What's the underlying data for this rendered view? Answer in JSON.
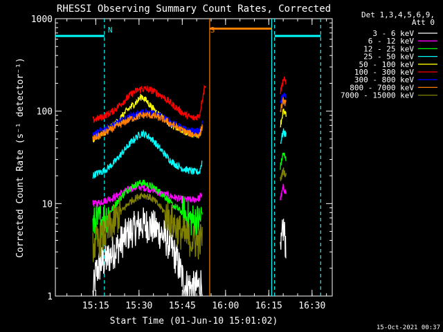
{
  "chart_data": {
    "type": "line",
    "title": "RHESSI Observing Summary Count Rates, Corrected",
    "xlabel": "Start Time (01-Jun-10 15:01:02)",
    "ylabel": "Corrected Count Rate (s⁻¹ detector⁻¹)",
    "yscale": "log",
    "ylim": [
      1,
      1000
    ],
    "xlim_minutes": [
      0,
      96
    ],
    "x_ticks": [
      {
        "label": "15:15",
        "t": 14
      },
      {
        "label": "15:30",
        "t": 29
      },
      {
        "label": "15:45",
        "t": 44
      },
      {
        "label": "16:00",
        "t": 59
      },
      {
        "label": "16:15",
        "t": 74
      },
      {
        "label": "16:30",
        "t": 89
      }
    ],
    "y_ticks": [
      {
        "label": "1",
        "v": 1
      },
      {
        "label": "10",
        "v": 10
      },
      {
        "label": "100",
        "v": 100
      },
      {
        "label": "1000",
        "v": 1000
      }
    ],
    "legend_header": [
      "Det 1,3,4,5,6,9,",
      "Att 0"
    ],
    "legend_placement": "right",
    "series": [
      {
        "name": "3 - 6 keV",
        "color": "#ffffff",
        "seg1": [
          [
            13,
            1
          ],
          [
            14,
            1.8
          ],
          [
            16,
            2.3
          ],
          [
            18,
            2.5
          ],
          [
            20,
            3.0
          ],
          [
            22,
            3.5
          ],
          [
            24,
            4.3
          ],
          [
            26,
            5.0
          ],
          [
            28,
            5.5
          ],
          [
            30,
            6.0
          ],
          [
            32,
            5.8
          ],
          [
            34,
            5.5
          ],
          [
            36,
            5.0
          ],
          [
            38,
            4.3
          ],
          [
            40,
            3.5
          ],
          [
            42,
            2.5
          ],
          [
            44,
            1.6
          ],
          [
            45,
            1.3
          ],
          [
            46,
            1.3
          ],
          [
            48,
            1.2
          ],
          [
            50,
            1.3
          ],
          [
            51,
            1.5
          ]
        ],
        "seg2": [
          [
            78,
            2.5
          ],
          [
            79,
            5.5
          ],
          [
            80,
            3.5
          ]
        ]
      },
      {
        "name": "6 - 12 keV",
        "color": "#ff00ff",
        "seg1": [
          [
            13,
            10
          ],
          [
            14,
            10
          ],
          [
            16,
            10.5
          ],
          [
            18,
            11
          ],
          [
            20,
            11.5
          ],
          [
            22,
            12.5
          ],
          [
            24,
            13.5
          ],
          [
            26,
            14.5
          ],
          [
            28,
            15
          ],
          [
            30,
            15
          ],
          [
            32,
            14.5
          ],
          [
            34,
            14
          ],
          [
            36,
            13
          ],
          [
            38,
            12.5
          ],
          [
            40,
            12
          ],
          [
            42,
            11.5
          ],
          [
            44,
            11
          ],
          [
            46,
            11
          ],
          [
            48,
            11
          ],
          [
            50,
            11.5
          ],
          [
            51,
            13
          ]
        ],
        "seg2": [
          [
            78,
            11
          ],
          [
            79,
            15
          ],
          [
            80,
            13
          ]
        ]
      },
      {
        "name": "12 - 25 keV",
        "color": "#00ff00",
        "seg1": [
          [
            13,
            6
          ],
          [
            14,
            6.2
          ],
          [
            16,
            6.8
          ],
          [
            18,
            7.5
          ],
          [
            20,
            9
          ],
          [
            22,
            11
          ],
          [
            24,
            13
          ],
          [
            26,
            15
          ],
          [
            28,
            16
          ],
          [
            30,
            17
          ],
          [
            32,
            16
          ],
          [
            34,
            15
          ],
          [
            36,
            13.5
          ],
          [
            38,
            12
          ],
          [
            40,
            10
          ],
          [
            42,
            9
          ],
          [
            44,
            8
          ],
          [
            46,
            7
          ],
          [
            48,
            6.5
          ],
          [
            50,
            6.5
          ],
          [
            51,
            8
          ]
        ],
        "seg2": [
          [
            78,
            25
          ],
          [
            79,
            35
          ],
          [
            80,
            30
          ]
        ]
      },
      {
        "name": "25 - 50 keV",
        "color": "#00ffff",
        "seg1": [
          [
            13,
            20
          ],
          [
            14,
            21
          ],
          [
            16,
            22
          ],
          [
            18,
            24
          ],
          [
            20,
            27
          ],
          [
            22,
            32
          ],
          [
            24,
            38
          ],
          [
            26,
            45
          ],
          [
            28,
            52
          ],
          [
            30,
            58
          ],
          [
            32,
            54
          ],
          [
            34,
            48
          ],
          [
            36,
            40
          ],
          [
            38,
            34
          ],
          [
            40,
            29
          ],
          [
            42,
            26
          ],
          [
            44,
            24
          ],
          [
            46,
            23
          ],
          [
            48,
            22
          ],
          [
            50,
            22
          ],
          [
            51,
            30
          ]
        ],
        "seg2": [
          [
            78,
            45
          ],
          [
            79,
            60
          ],
          [
            80,
            55
          ]
        ]
      },
      {
        "name": "50 - 100 keV",
        "color": "#ffff00",
        "seg1": [
          [
            13,
            50
          ],
          [
            14,
            52
          ],
          [
            16,
            56
          ],
          [
            18,
            62
          ],
          [
            20,
            70
          ],
          [
            22,
            80
          ],
          [
            24,
            95
          ],
          [
            26,
            110
          ],
          [
            28,
            125
          ],
          [
            30,
            145
          ],
          [
            32,
            125
          ],
          [
            34,
            105
          ],
          [
            36,
            92
          ],
          [
            38,
            82
          ],
          [
            40,
            72
          ],
          [
            42,
            66
          ],
          [
            44,
            62
          ],
          [
            46,
            58
          ],
          [
            48,
            56
          ],
          [
            50,
            56
          ],
          [
            51,
            70
          ]
        ],
        "seg2": [
          [
            78,
            70
          ],
          [
            79,
            100
          ],
          [
            80,
            90
          ]
        ]
      },
      {
        "name": "100 - 300 keV",
        "color": "#ff0000",
        "seg1": [
          [
            13,
            80
          ],
          [
            14,
            82
          ],
          [
            16,
            86
          ],
          [
            18,
            92
          ],
          [
            20,
            100
          ],
          [
            22,
            115
          ],
          [
            24,
            130
          ],
          [
            26,
            150
          ],
          [
            28,
            165
          ],
          [
            30,
            175
          ],
          [
            32,
            172
          ],
          [
            34,
            165
          ],
          [
            36,
            152
          ],
          [
            38,
            138
          ],
          [
            40,
            122
          ],
          [
            42,
            108
          ],
          [
            44,
            96
          ],
          [
            46,
            88
          ],
          [
            48,
            84
          ],
          [
            50,
            90
          ],
          [
            51,
            140
          ],
          [
            52,
            200
          ]
        ],
        "seg2": [
          [
            78,
            160
          ],
          [
            79,
            220
          ],
          [
            80,
            210
          ]
        ]
      },
      {
        "name": "300 - 800 keV",
        "color": "#0000ff",
        "seg1": [
          [
            13,
            55
          ],
          [
            14,
            57
          ],
          [
            16,
            62
          ],
          [
            18,
            66
          ],
          [
            20,
            70
          ],
          [
            22,
            76
          ],
          [
            24,
            82
          ],
          [
            26,
            88
          ],
          [
            28,
            92
          ],
          [
            30,
            95
          ],
          [
            32,
            96
          ],
          [
            34,
            94
          ],
          [
            36,
            90
          ],
          [
            38,
            84
          ],
          [
            40,
            76
          ],
          [
            42,
            70
          ],
          [
            44,
            65
          ],
          [
            46,
            62
          ],
          [
            48,
            60
          ],
          [
            50,
            60
          ],
          [
            51,
            75
          ]
        ],
        "seg2": [
          [
            78,
            120
          ],
          [
            79,
            155
          ],
          [
            80,
            140
          ]
        ]
      },
      {
        "name": "800 - 7000 keV",
        "color": "#ff8000",
        "seg1": [
          [
            13,
            50
          ],
          [
            14,
            52
          ],
          [
            16,
            56
          ],
          [
            18,
            60
          ],
          [
            20,
            65
          ],
          [
            22,
            70
          ],
          [
            24,
            76
          ],
          [
            26,
            82
          ],
          [
            28,
            86
          ],
          [
            30,
            90
          ],
          [
            32,
            91
          ],
          [
            34,
            89
          ],
          [
            36,
            85
          ],
          [
            38,
            80
          ],
          [
            40,
            73
          ],
          [
            42,
            67
          ],
          [
            44,
            62
          ],
          [
            46,
            58
          ],
          [
            48,
            56
          ],
          [
            50,
            55
          ],
          [
            51,
            70
          ]
        ],
        "seg2": [
          [
            78,
            100
          ],
          [
            79,
            130
          ],
          [
            80,
            120
          ]
        ]
      },
      {
        "name": "7000 - 15000 keV",
        "color": "#808000",
        "seg1": [
          [
            13,
            3.5
          ],
          [
            14,
            3.7
          ],
          [
            16,
            4.2
          ],
          [
            18,
            5
          ],
          [
            20,
            6
          ],
          [
            22,
            7.5
          ],
          [
            24,
            9
          ],
          [
            26,
            10.5
          ],
          [
            28,
            11.5
          ],
          [
            30,
            12.5
          ],
          [
            32,
            12
          ],
          [
            34,
            11
          ],
          [
            36,
            9.5
          ],
          [
            38,
            8
          ],
          [
            40,
            6.5
          ],
          [
            42,
            5.5
          ],
          [
            44,
            4.7
          ],
          [
            46,
            4.2
          ],
          [
            48,
            3.9
          ],
          [
            50,
            3.8
          ],
          [
            51,
            4.5
          ]
        ],
        "seg2": [
          [
            78,
            18
          ],
          [
            79,
            23
          ],
          [
            80,
            20
          ]
        ]
      }
    ],
    "annotations": [
      {
        "text": "N",
        "t": 17,
        "color": "#00ffff"
      },
      {
        "text": "S",
        "t": 52.5,
        "color": "#ff8000"
      }
    ],
    "night_bars": [
      {
        "t0": 0,
        "t1": 17,
        "v": 650,
        "color": "#00ffff"
      },
      {
        "t0": 76,
        "t1": 92,
        "v": 650,
        "color": "#00ffff"
      }
    ],
    "saa_bar": {
      "t0": 53.5,
      "t1": 75,
      "v": 780,
      "color": "#ff8000"
    },
    "event_lines": [
      {
        "t": 17,
        "color": "#00ffff",
        "dashed": true
      },
      {
        "t": 53.5,
        "color": "#ff8000",
        "dashed": false
      },
      {
        "t": 75,
        "color": "#00ffff",
        "dashed": false
      },
      {
        "t": 76,
        "color": "#00ffff",
        "dashed": true
      },
      {
        "t": 92,
        "color": "#00ffff",
        "dashed": true
      }
    ]
  },
  "footer_date": "15-Oct-2021 00:37"
}
